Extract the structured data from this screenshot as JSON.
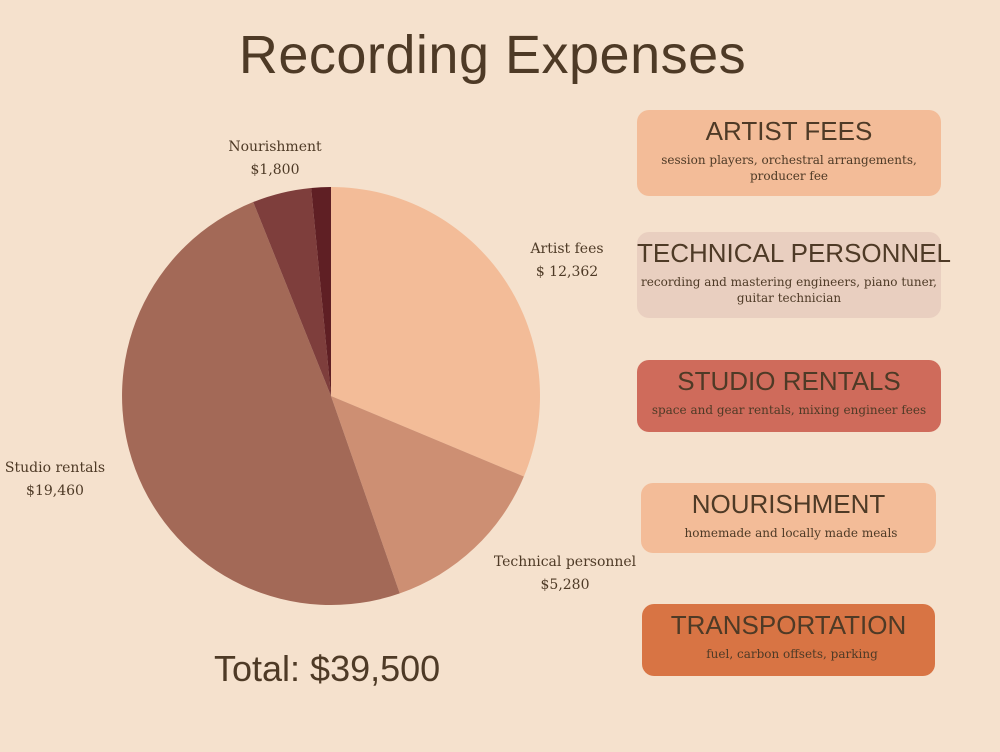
{
  "title": "Recording Expenses",
  "total": "Total: $39,500",
  "chart_data": {
    "type": "pie",
    "title": "Recording Expenses",
    "start": "12 o'clock",
    "direction": "clockwise",
    "slices": [
      {
        "name": "Artist fees",
        "value": 12362,
        "value_label": "$ 12,362",
        "color": "#f3bc98"
      },
      {
        "name": "Technical personnel",
        "value": 5280,
        "value_label": "$5,280",
        "color": "#cd8f73"
      },
      {
        "name": "Studio rentals",
        "value": 19460,
        "value_label": "$19,460",
        "color": "#a36957"
      },
      {
        "name": "Nourishment",
        "value": 1800,
        "value_label": "$1,800",
        "color": "#7e3e3c"
      },
      {
        "name": "Transportation",
        "value": 598,
        "value_label": "",
        "color": "#5f1f24"
      }
    ]
  },
  "cards": [
    {
      "title": "ARTIST FEES",
      "desc": "session players, orchestral arrangements, producer fee",
      "color": "#f3bc98"
    },
    {
      "title": "TECHNICAL PERSONNEL",
      "desc": "recording and mastering engineers, piano tuner, guitar technician",
      "color": "#e9cfc0"
    },
    {
      "title": "STUDIO RENTALS",
      "desc": "space and gear rentals, mixing engineer fees",
      "color": "#cf6b5b"
    },
    {
      "title": "NOURISHMENT",
      "desc": "homemade and locally made meals",
      "color": "#f3bc98"
    },
    {
      "title": "TRANSPORTATION",
      "desc": "fuel, carbon offsets, parking",
      "color": "#d87444"
    }
  ]
}
